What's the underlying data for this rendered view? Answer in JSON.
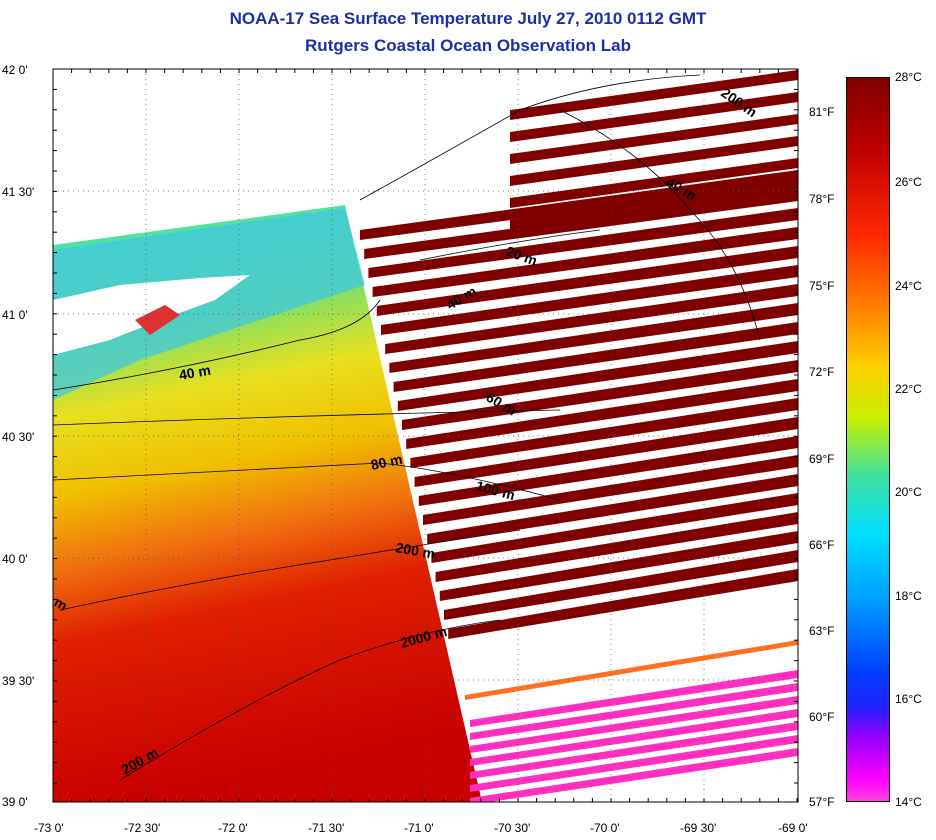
{
  "title": "NOAA-17 Sea Surface Temperature July 27, 2010 0112 GMT",
  "subtitle": "Rutgers Coastal Ocean Observation Lab",
  "latitude_labels": [
    "42 0'",
    "41 30'",
    "41 0'",
    "40 30'",
    "40 0'",
    "39 30'",
    "39 0'"
  ],
  "longitude_labels": [
    "-73 0'",
    "-72 30'",
    "-72 0'",
    "-71 30'",
    "-71 0'",
    "-70 30'",
    "-70 0'",
    "-69 30'",
    "-69 0'"
  ],
  "fahrenheit_labels": [
    "81°F",
    "78°F",
    "75°F",
    "72°F",
    "69°F",
    "66°F",
    "63°F",
    "60°F",
    "57°F"
  ],
  "celsius_labels": [
    "28°C",
    "26°C",
    "24°C",
    "22°C",
    "20°C",
    "18°C",
    "16°C",
    "14°C"
  ],
  "depth_contour_labels": [
    "200 m",
    "40 m",
    "20 m",
    "40 m",
    "40 m",
    "60 m",
    "80 m",
    "100 m",
    "200 m",
    "2000 m",
    "200 m",
    "m"
  ],
  "colors": {
    "title": "#1c2fa6",
    "warm": "#d40000",
    "cloud_mask": "#800000",
    "pink_mask": "#ff30c0"
  }
}
